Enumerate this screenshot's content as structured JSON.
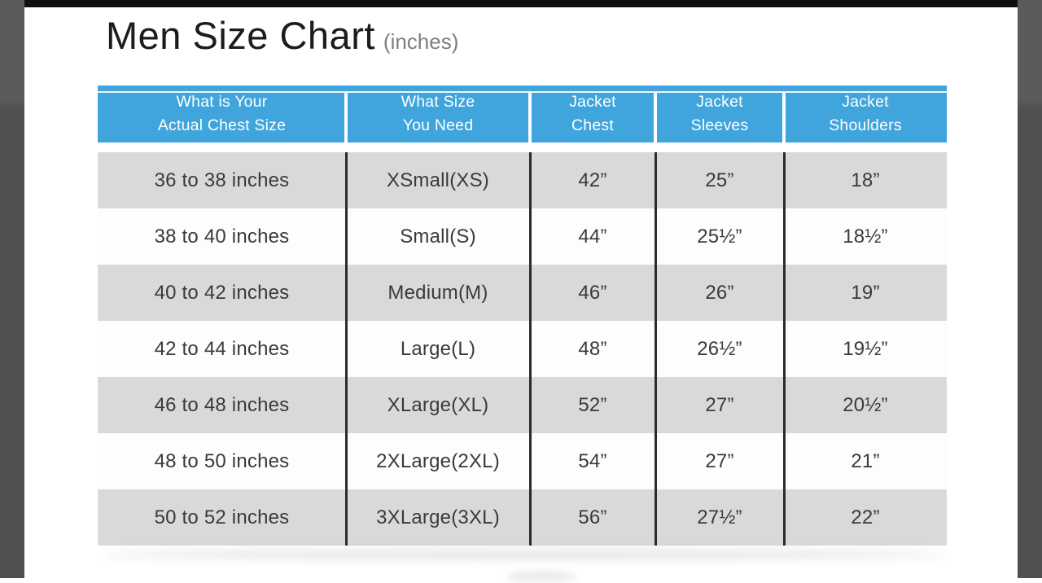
{
  "title": {
    "main": "Men Size Chart",
    "unit": "(inches)"
  },
  "colors": {
    "header_bg": "#3FA5DC",
    "header_text": "#FFFFFF",
    "row_shade": "#D9D9DA",
    "row_plain": "#FDFDFE",
    "body_text": "#3A3A3C",
    "divider": "#2B2B2D",
    "gutter_gray": "#565658",
    "top_bar": "#0F0F0F"
  },
  "header": {
    "labels": [
      "What is Your\nActual Chest Size",
      "What Size\nYou Need",
      "Jacket\nChest",
      "Jacket\nSleeves",
      "Jacket\nShoulders"
    ]
  },
  "chart_data": {
    "type": "table",
    "title": "Men Size Chart",
    "unit_note": "(inches)",
    "columns": [
      "What is Your Actual Chest Size",
      "What Size You Need",
      "Jacket Chest",
      "Jacket Sleeves",
      "Jacket Shoulders"
    ],
    "rows": [
      [
        "36 to 38 inches",
        "XSmall(XS)",
        "42”",
        "25”",
        "18”"
      ],
      [
        "38 to 40 inches",
        "Small(S)",
        "44”",
        "25½”",
        "18½”"
      ],
      [
        "40 to 42 inches",
        "Medium(M)",
        "46”",
        "26”",
        "19”"
      ],
      [
        "42 to 44 inches",
        "Large(L)",
        "48”",
        "26½”",
        "19½”"
      ],
      [
        "46 to 48 inches",
        "XLarge(XL)",
        "52”",
        "27”",
        "20½”"
      ],
      [
        "48 to 50 inches",
        "2XLarge(2XL)",
        "54”",
        "27”",
        "21”"
      ],
      [
        "50 to 52 inches",
        "3XLarge(3XL)",
        "56”",
        "27½”",
        "22”"
      ]
    ]
  }
}
